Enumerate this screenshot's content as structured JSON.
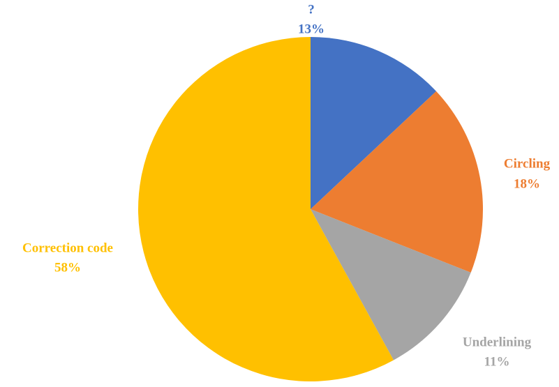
{
  "chart_data": {
    "type": "pie",
    "categories": [
      "?",
      "Circling",
      "Underlining",
      "Correction code"
    ],
    "values": [
      13,
      18,
      11,
      58
    ],
    "value_labels": [
      "13%",
      "18%",
      "11%",
      "58%"
    ],
    "colors": [
      "#4472c4",
      "#ed7d31",
      "#a5a5a5",
      "#ffc000"
    ]
  }
}
